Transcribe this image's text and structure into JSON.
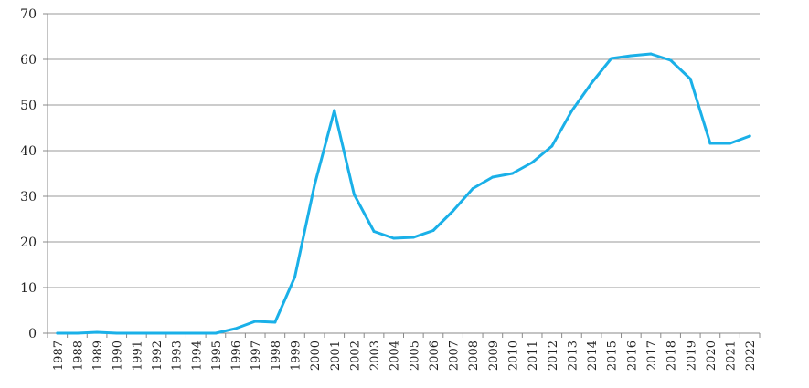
{
  "chart_data": {
    "type": "line",
    "title": "",
    "xlabel": "",
    "ylabel": "",
    "ylim": [
      0,
      70
    ],
    "y_ticks": [
      "0",
      "10",
      "20",
      "30",
      "40",
      "50",
      "60",
      "70"
    ],
    "grid": "horizontal",
    "legend": "none",
    "categories": [
      "1987",
      "1988",
      "1989",
      "1990",
      "1991",
      "1992",
      "1993",
      "1994",
      "1995",
      "1996",
      "1997",
      "1998",
      "1999",
      "2000",
      "2001",
      "2002",
      "2003",
      "2004",
      "2005",
      "2006",
      "2007",
      "2008",
      "2009",
      "2010",
      "2011",
      "2012",
      "2013",
      "2014",
      "2015",
      "2016",
      "2017",
      "2018",
      "2019",
      "2020",
      "2021",
      "2022"
    ],
    "series": [
      {
        "color": "#1ab0e8",
        "values": [
          0,
          0,
          0.2,
          0,
          0,
          0,
          0,
          0,
          0,
          1,
          2.6,
          2.4,
          12.3,
          32.5,
          48.8,
          30.4,
          22.3,
          20.8,
          21,
          22.5,
          26.8,
          31.7,
          34.2,
          35,
          37.4,
          41,
          48.7,
          54.8,
          60.2,
          60.8,
          61.2,
          59.8,
          55.7,
          41.6,
          41.6,
          43.2
        ]
      }
    ]
  },
  "colors": {
    "line": "#1ab0e8",
    "grid": "#9a9a9a",
    "axis": "#8a8a8a"
  }
}
